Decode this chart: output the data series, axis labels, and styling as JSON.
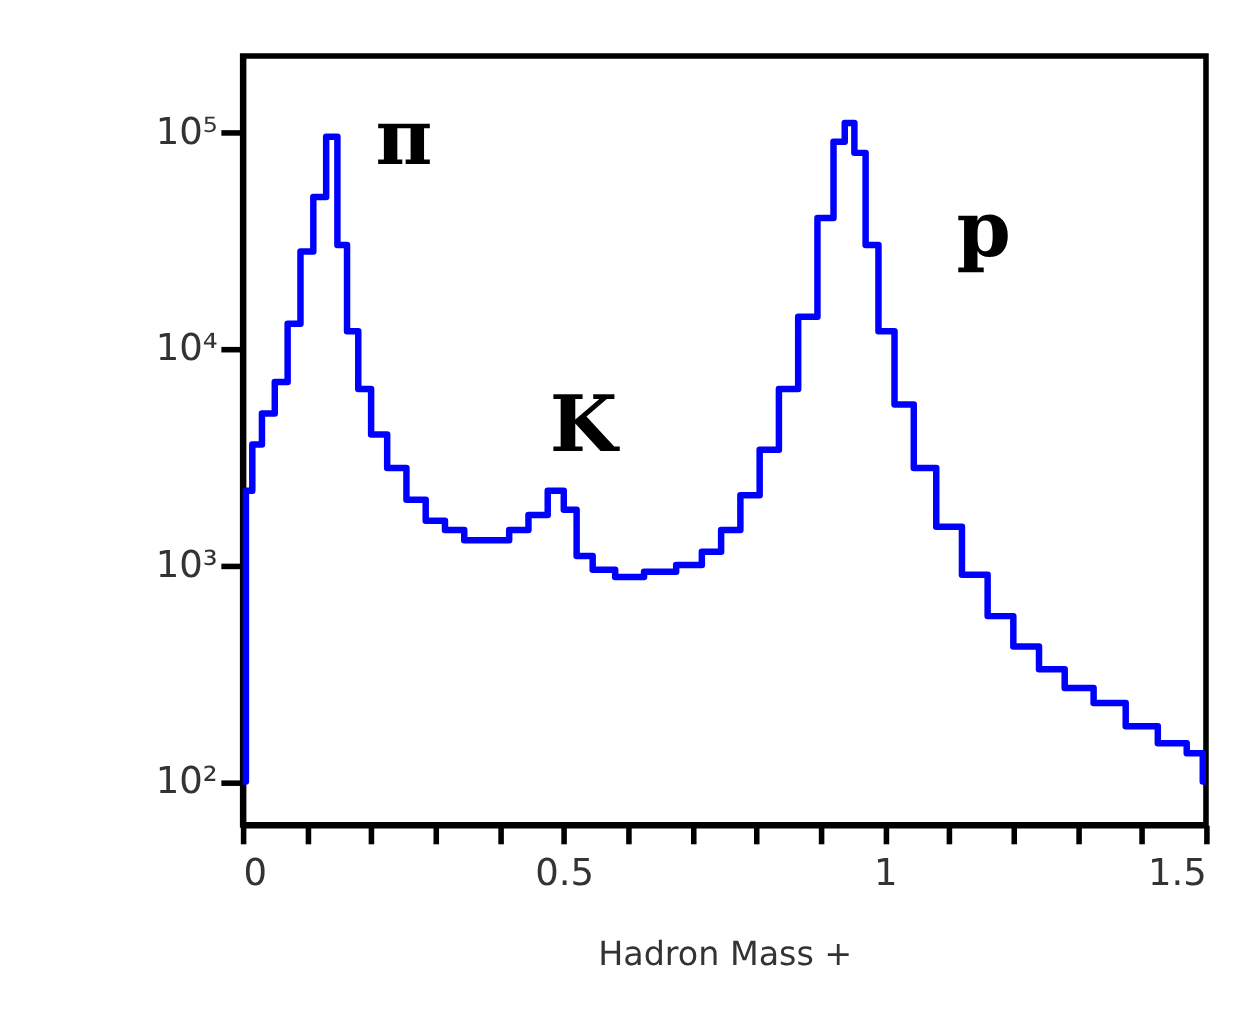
{
  "chart_data": {
    "type": "step",
    "xlabel": "Hadron Mass +",
    "x": [
      0.0,
      0.01,
      0.02,
      0.04,
      0.06,
      0.08,
      0.1,
      0.12,
      0.14,
      0.155,
      0.17,
      0.19,
      0.21,
      0.24,
      0.27,
      0.3,
      0.33,
      0.36,
      0.4,
      0.43,
      0.46,
      0.49,
      0.51,
      0.53,
      0.56,
      0.6,
      0.65,
      0.7,
      0.73,
      0.76,
      0.79,
      0.82,
      0.85,
      0.88,
      0.91,
      0.93,
      0.945,
      0.96,
      0.98,
      1.0,
      1.03,
      1.06,
      1.1,
      1.14,
      1.18,
      1.22,
      1.26,
      1.3,
      1.35,
      1.4,
      1.45,
      1.49,
      1.5
    ],
    "series": [
      {
        "color": "#0000ff",
        "values": [
          100,
          2200,
          3600,
          5000,
          7000,
          13000,
          28000,
          50000,
          95000,
          30000,
          12000,
          6500,
          4000,
          2800,
          2000,
          1600,
          1450,
          1300,
          1300,
          1450,
          1700,
          2200,
          1800,
          1100,
          950,
          880,
          930,
          1000,
          1150,
          1450,
          2100,
          3400,
          6500,
          14000,
          40000,
          90000,
          110000,
          80000,
          30000,
          12000,
          5500,
          2800,
          1500,
          900,
          580,
          420,
          330,
          270,
          230,
          180,
          150,
          135,
          100
        ]
      }
    ],
    "log": "y",
    "xlim": [
      0,
      1.5
    ],
    "xticks": [
      0,
      {
        "value": 0.1,
        "label": null
      },
      {
        "value": 0.2,
        "label": null
      },
      {
        "value": 0.3,
        "label": null
      },
      {
        "value": 0.4,
        "label": null
      },
      0.5,
      {
        "value": 0.6,
        "label": null
      },
      {
        "value": 0.7,
        "label": null
      },
      {
        "value": 0.8,
        "label": null
      },
      {
        "value": 0.9,
        "label": null
      },
      1,
      {
        "value": 1.1,
        "label": null
      },
      {
        "value": 1.2,
        "label": null
      },
      {
        "value": 1.3,
        "label": null
      },
      {
        "value": 1.4,
        "label": null
      },
      1.5
    ],
    "ylim": [
      63,
      224000
    ],
    "yticks": [
      {
        "value": 100,
        "label": "10²"
      },
      {
        "value": 1000,
        "label": "10³"
      },
      {
        "value": 10000,
        "label": "10⁴"
      },
      {
        "value": 100000,
        "label": "10⁵"
      }
    ],
    "grid": false,
    "annotations": [
      "π",
      "K",
      "p"
    ]
  }
}
